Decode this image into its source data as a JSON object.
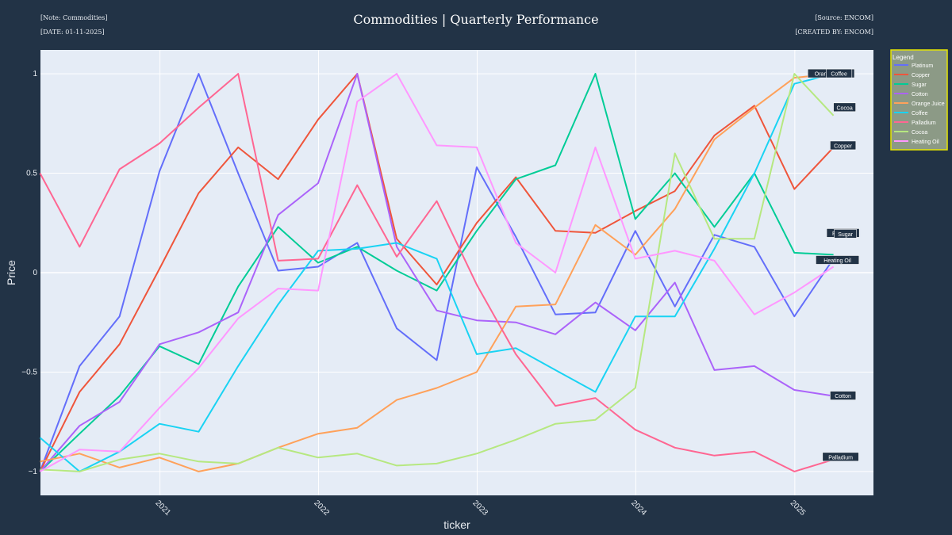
{
  "header": {
    "note": "[Note: Commodities]",
    "date": "[DATE: 01-11-2025]",
    "title": "Commodities | Quarterly Performance",
    "source": "[Source: ENCOM]",
    "created_by": "[CREATED BY: ENCOM]"
  },
  "colors": {
    "page_bg": "#223346",
    "plot_bg": "#e5ecf6",
    "legend_bg": "#8c9a86",
    "legend_border": "#e6e600"
  },
  "chart_data": {
    "type": "line",
    "xlabel": "ticker",
    "ylabel": "Price",
    "ylim": [
      -1.12,
      1.12
    ],
    "xlim": [
      "2020-04-01",
      "2025-07-01"
    ],
    "x_ticks": [
      "2021",
      "2022",
      "2023",
      "2024",
      "2025"
    ],
    "y_ticks": [
      1,
      0.5,
      0,
      -0.5,
      -1
    ],
    "y_tick_labels": [
      "1",
      "0.5",
      "0",
      "−0.5",
      "−1"
    ],
    "grid": true,
    "legend": {
      "title": "Legend",
      "position": "right"
    },
    "x": [
      "2020-03-31",
      "2020-06-30",
      "2020-09-30",
      "2020-12-31",
      "2021-03-31",
      "2021-06-30",
      "2021-09-30",
      "2021-12-31",
      "2022-03-31",
      "2022-06-30",
      "2022-09-30",
      "2022-12-31",
      "2023-03-31",
      "2023-06-30",
      "2023-09-30",
      "2023-12-31",
      "2024-03-31",
      "2024-06-30",
      "2024-09-30",
      "2024-12-31",
      "2025-03-31"
    ],
    "series": [
      {
        "name": "Platinum",
        "color": "#636efa",
        "values": [
          -1.0,
          -0.47,
          -0.22,
          0.51,
          1.0,
          0.5,
          0.01,
          0.03,
          0.15,
          -0.28,
          -0.44,
          0.53,
          0.18,
          -0.21,
          -0.2,
          0.21,
          -0.17,
          0.19,
          0.13,
          -0.22,
          0.07
        ]
      },
      {
        "name": "Copper",
        "color": "#ef553b",
        "values": [
          -1.0,
          -0.6,
          -0.36,
          0.02,
          0.4,
          0.63,
          0.47,
          0.77,
          1.0,
          0.17,
          -0.06,
          0.25,
          0.48,
          0.21,
          0.2,
          0.31,
          0.41,
          0.69,
          0.84,
          0.42,
          0.63
        ]
      },
      {
        "name": "Sugar",
        "color": "#00cc96",
        "values": [
          -1.0,
          -0.81,
          -0.62,
          -0.37,
          -0.46,
          -0.07,
          0.23,
          0.05,
          0.13,
          0.01,
          -0.09,
          0.21,
          0.47,
          0.54,
          1.0,
          0.27,
          0.5,
          0.23,
          0.5,
          0.1,
          0.09
        ]
      },
      {
        "name": "Cotton",
        "color": "#ab63fa",
        "values": [
          -1.0,
          -0.77,
          -0.65,
          -0.36,
          -0.3,
          -0.2,
          0.29,
          0.45,
          1.0,
          0.13,
          -0.19,
          -0.24,
          -0.25,
          -0.31,
          -0.15,
          -0.29,
          -0.05,
          -0.49,
          -0.47,
          -0.59,
          -0.62
        ]
      },
      {
        "name": "Orange Juice",
        "color": "#ffa15a",
        "values": [
          -0.95,
          -0.91,
          -0.98,
          -0.93,
          -1.0,
          -0.96,
          -0.88,
          -0.81,
          -0.78,
          -0.64,
          -0.58,
          -0.5,
          -0.17,
          -0.16,
          0.24,
          0.09,
          0.32,
          0.67,
          0.83,
          0.98,
          1.0
        ]
      },
      {
        "name": "Coffee",
        "color": "#19d3f3",
        "values": [
          -0.83,
          -1.0,
          -0.9,
          -0.76,
          -0.8,
          -0.47,
          -0.16,
          0.11,
          0.12,
          0.15,
          0.07,
          -0.41,
          -0.38,
          -0.49,
          -0.6,
          -0.22,
          -0.22,
          0.12,
          0.5,
          0.95,
          1.0
        ]
      },
      {
        "name": "Palladium",
        "color": "#ff6692",
        "values": [
          0.5,
          0.13,
          0.52,
          0.65,
          0.83,
          1.0,
          0.06,
          0.07,
          0.44,
          0.08,
          0.36,
          -0.06,
          -0.41,
          -0.67,
          -0.63,
          -0.79,
          -0.88,
          -0.92,
          -0.9,
          -1.0,
          -0.94
        ]
      },
      {
        "name": "Cocoa",
        "color": "#b6e880",
        "values": [
          -0.99,
          -1.0,
          -0.94,
          -0.91,
          -0.95,
          -0.96,
          -0.88,
          -0.93,
          -0.91,
          -0.97,
          -0.96,
          -0.91,
          -0.84,
          -0.76,
          -0.74,
          -0.58,
          0.6,
          0.17,
          0.17,
          1.0,
          0.79
        ]
      },
      {
        "name": "Heating Oil",
        "color": "#ff97ff",
        "values": [
          -1.0,
          -0.89,
          -0.9,
          -0.68,
          -0.48,
          -0.23,
          -0.08,
          -0.09,
          0.86,
          1.0,
          0.64,
          0.63,
          0.15,
          0.0,
          0.63,
          0.07,
          0.11,
          0.06,
          -0.21,
          -0.1,
          0.03
        ]
      }
    ],
    "end_labels": [
      {
        "text": "Orange Juice",
        "series": "Orange Juice"
      },
      {
        "text": "Coffee",
        "series": "Coffee"
      },
      {
        "text": "Cocoa",
        "series": "Cocoa"
      },
      {
        "text": "Copper",
        "series": "Copper"
      },
      {
        "text": "Platinum",
        "series": "Platinum"
      },
      {
        "text": "Sugar",
        "series": "Sugar"
      },
      {
        "text": "Heating Oil",
        "series": "Heating Oil"
      },
      {
        "text": "Cotton",
        "series": "Cotton"
      },
      {
        "text": "Palladium",
        "series": "Palladium"
      }
    ]
  }
}
